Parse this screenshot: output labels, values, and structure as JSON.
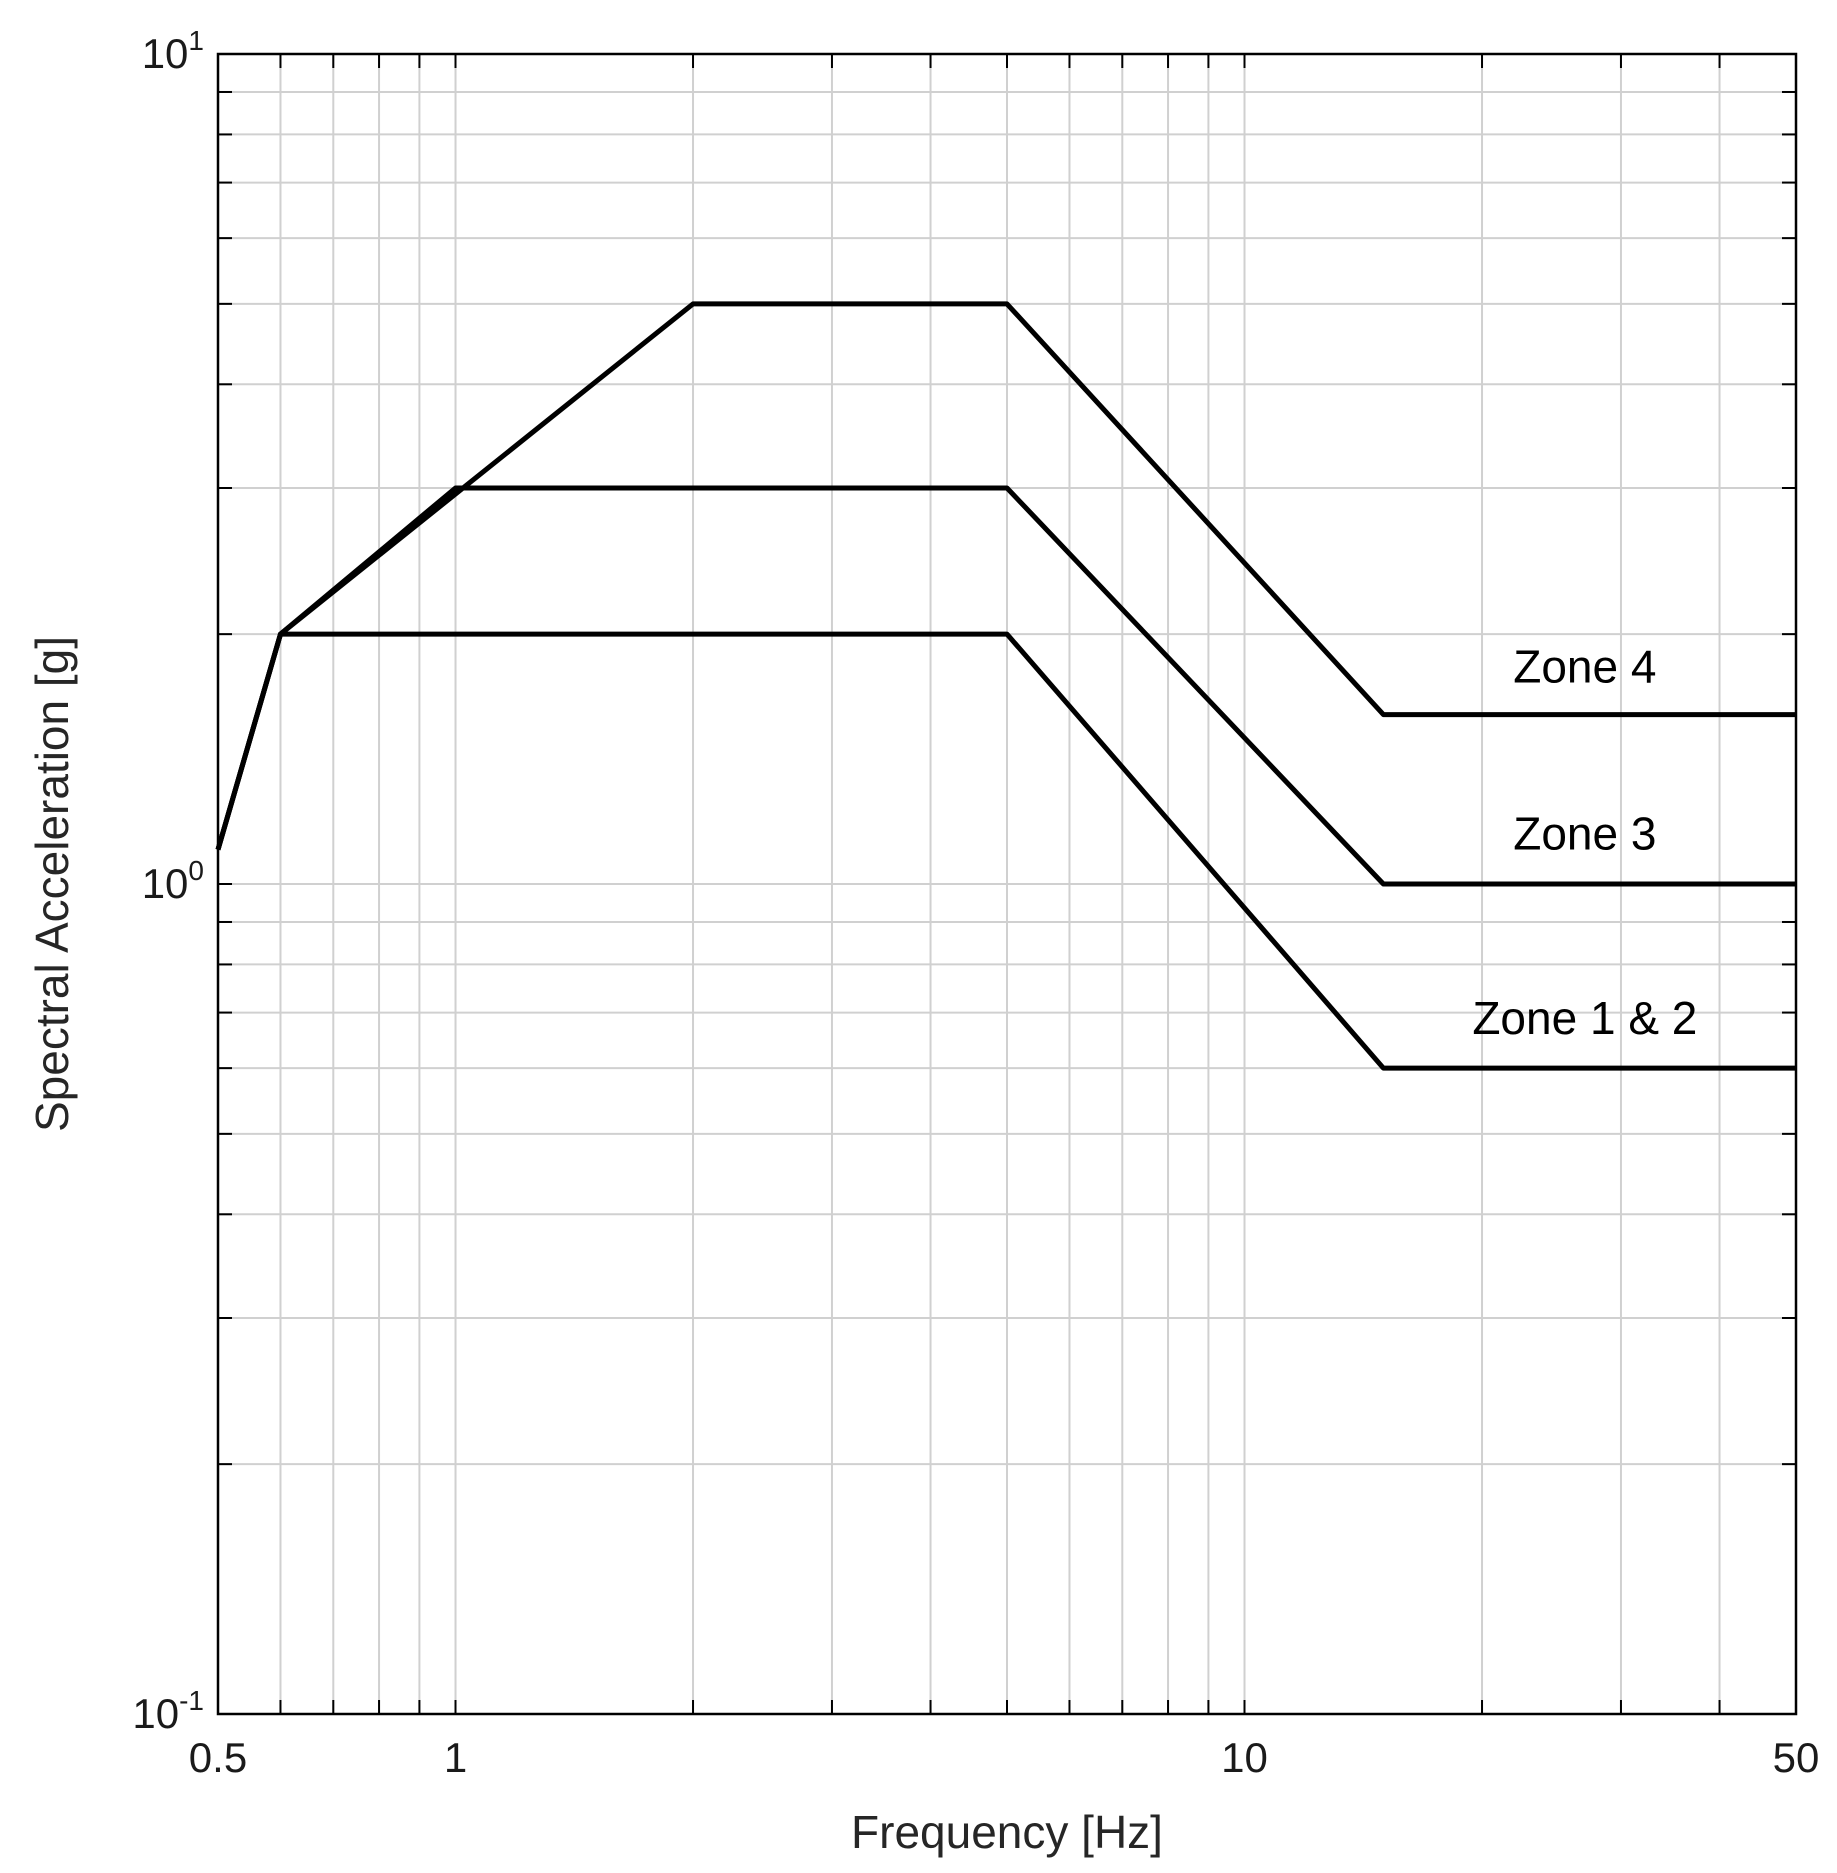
{
  "chart_data": {
    "type": "line",
    "x_scale": "log",
    "y_scale": "log",
    "xlim": [
      0.5,
      50
    ],
    "ylim": [
      0.1,
      10
    ],
    "grid": true,
    "xlabel": "Frequency [Hz]",
    "ylabel": "Spectral Acceleration [g]",
    "x_ticks": [
      {
        "value": 0.5,
        "label": "0.5"
      },
      {
        "value": 1,
        "label": "1"
      },
      {
        "value": 10,
        "label": "10"
      },
      {
        "value": 50,
        "label": "50"
      }
    ],
    "y_ticks": [
      {
        "value": 0.1,
        "base": "10",
        "exp": "-1"
      },
      {
        "value": 1,
        "base": "10",
        "exp": "0"
      },
      {
        "value": 10,
        "base": "10",
        "exp": "1"
      }
    ],
    "series": [
      {
        "name": "Zone 4",
        "x": [
          0.5,
          0.6,
          2.0,
          5.0,
          15.0,
          50
        ],
        "y": [
          1.1,
          2.0,
          5.0,
          5.0,
          1.6,
          1.6
        ]
      },
      {
        "name": "Zone 3",
        "x": [
          0.5,
          0.6,
          1.0,
          5.0,
          15.0,
          50
        ],
        "y": [
          1.1,
          2.0,
          3.0,
          3.0,
          1.0,
          1.0
        ]
      },
      {
        "name": "Zone 1 & 2",
        "x": [
          0.5,
          0.6,
          5.0,
          15.0,
          50
        ],
        "y": [
          1.1,
          2.0,
          2.0,
          0.6,
          0.6
        ]
      }
    ],
    "annotations": [
      {
        "text": "Zone 4",
        "x": 27,
        "y": 1.75
      },
      {
        "text": "Zone 3",
        "x": 27,
        "y": 1.1
      },
      {
        "text": "Zone 1 & 2",
        "x": 27,
        "y": 0.66
      }
    ],
    "colors": {
      "line": "#000000",
      "grid": "#d0d0d0",
      "axes": "#000000"
    }
  }
}
